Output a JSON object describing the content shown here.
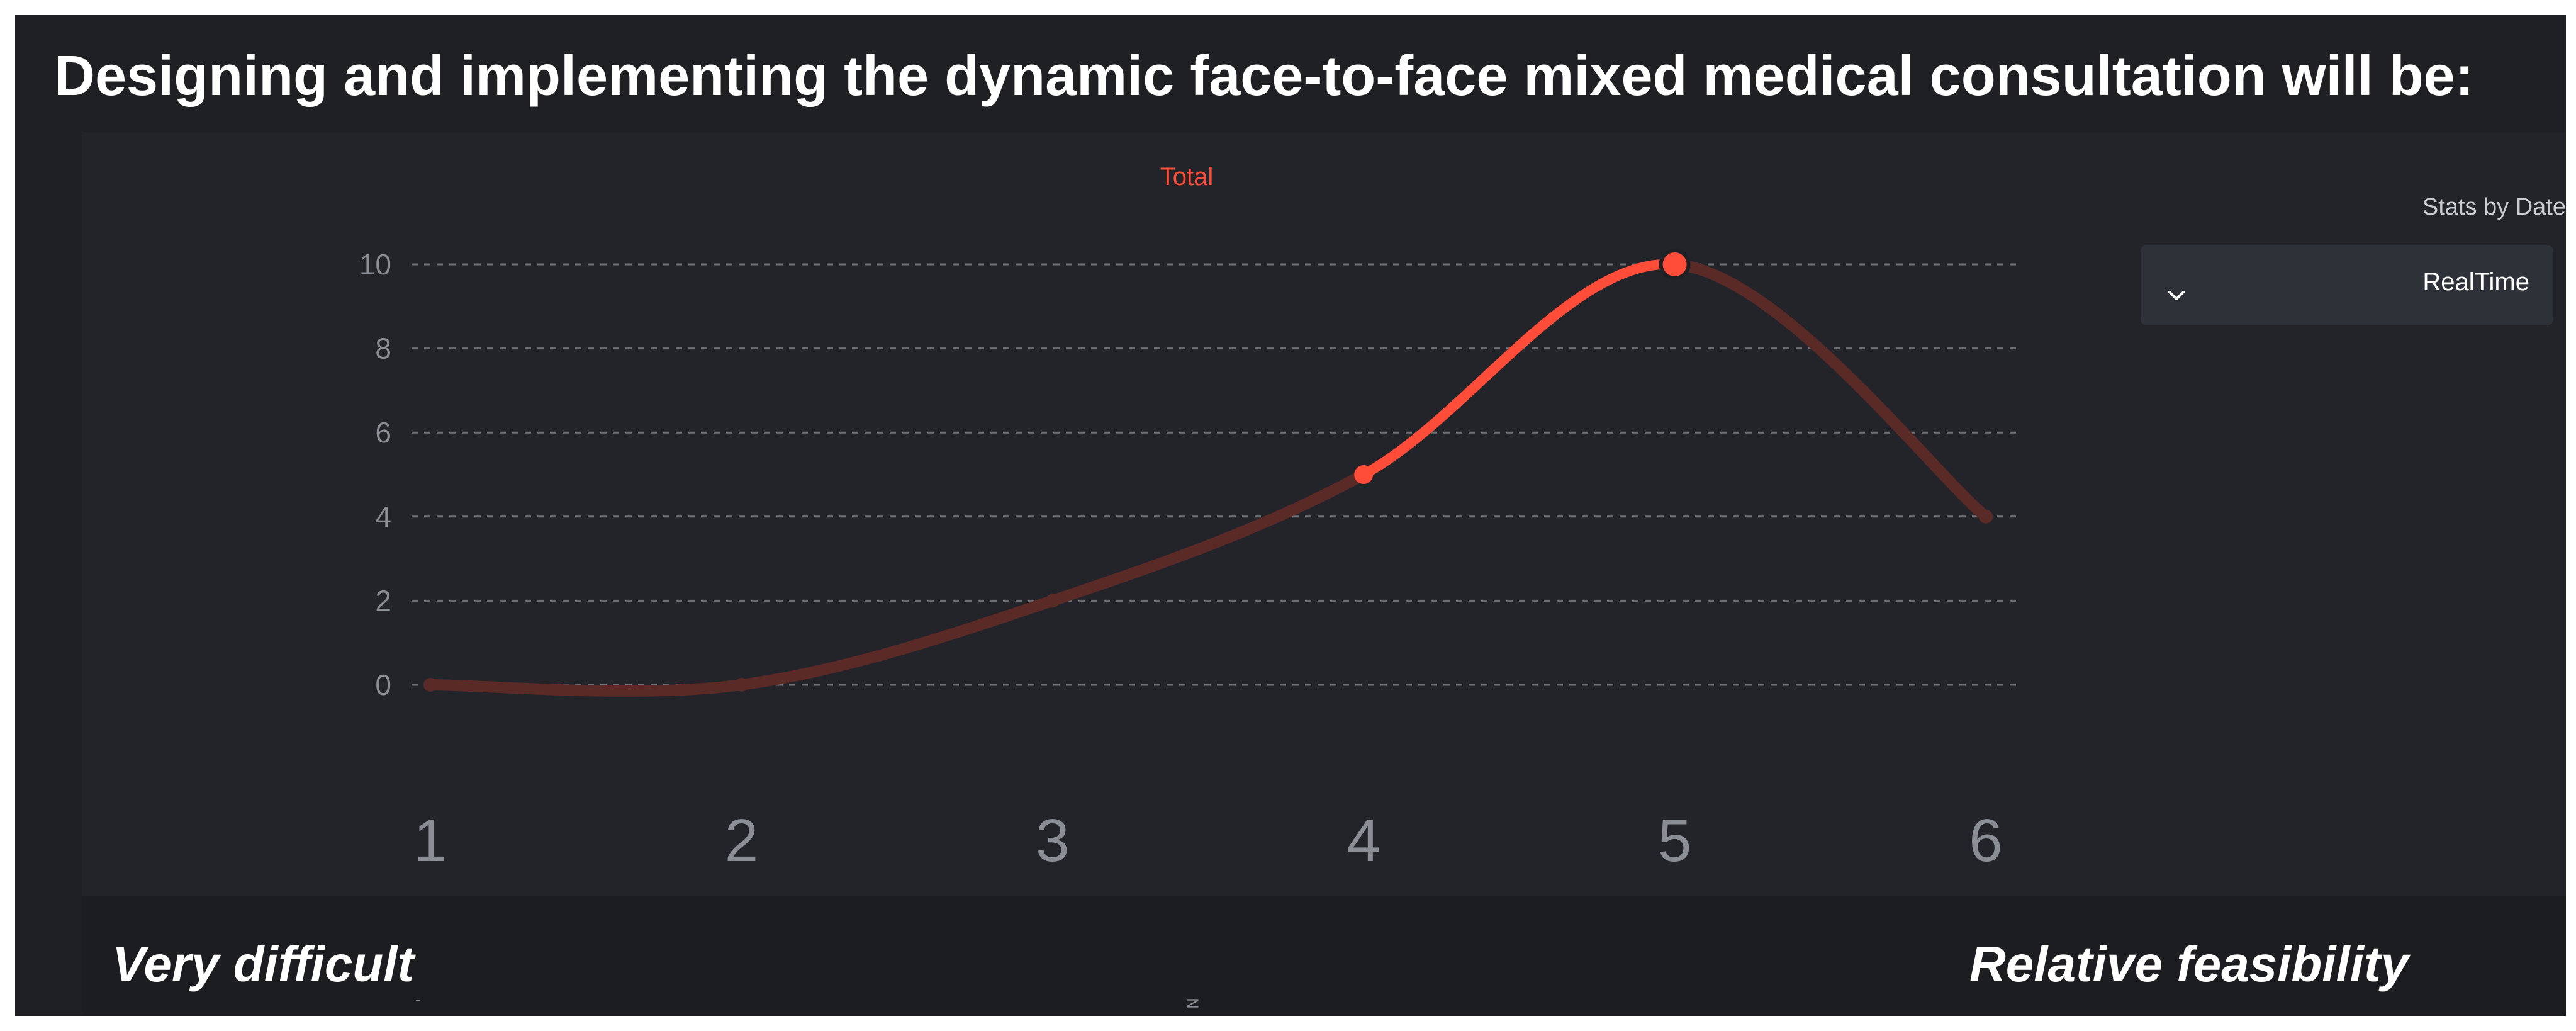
{
  "heading": "Designing and implementing the dynamic face-to-face mixed medical consultation will be:",
  "controls": {
    "label": "Stats by Date",
    "dropdown_value": "RealTime",
    "dropdown_icon": "chevron-down-icon"
  },
  "captions": {
    "left": "Very difficult",
    "right": "Relative feasibility"
  },
  "stray_marks": [
    "-",
    "N"
  ],
  "colors": {
    "background": "#1e2024",
    "accent": "#ff4d3a",
    "faded_line": "#5a2a27",
    "grid": "#8a8d93",
    "tick_text": "#8b8e94"
  },
  "chart_data": {
    "type": "line",
    "title": "Total",
    "xlabel": "",
    "ylabel": "",
    "x": [
      1,
      2,
      3,
      4,
      5,
      6
    ],
    "categories": [
      "1",
      "2",
      "3",
      "4",
      "5",
      "6"
    ],
    "series": [
      {
        "name": "Total",
        "values": [
          0,
          0,
          2,
          5,
          10,
          4
        ]
      }
    ],
    "highlight": {
      "from_x": 4,
      "to_x": 5,
      "max_point_x": 5
    },
    "ylim": [
      0,
      10
    ],
    "yticks": [
      0,
      2,
      4,
      6,
      8,
      10
    ],
    "grid": true,
    "smooth": true
  }
}
